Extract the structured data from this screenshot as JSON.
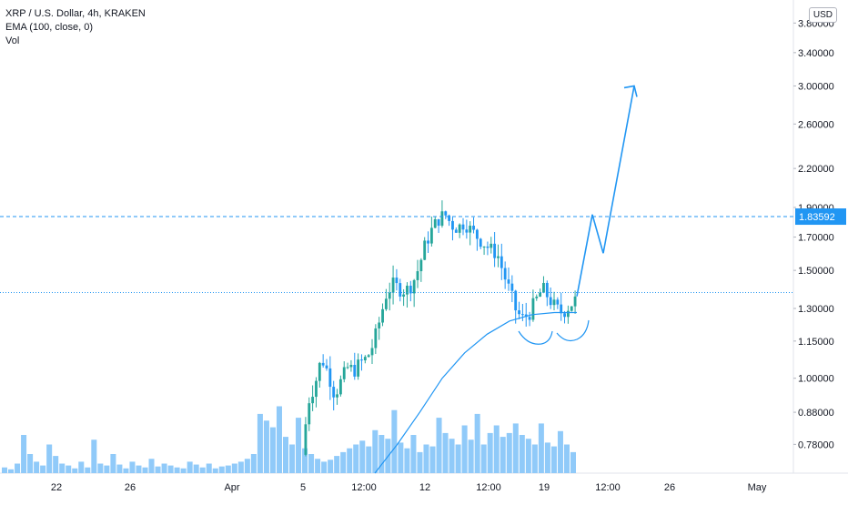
{
  "legend": {
    "symbol_line": "XRP / U.S. Dollar, 4h, KRAKEN",
    "ema_line": "EMA (100, close, 0)",
    "vol_line": "Vol"
  },
  "currency_badge": "USD",
  "colors": {
    "up": "#26a69a",
    "candle_blue": "#2196f3",
    "volume": "#90caf9",
    "ema": "#2196f3",
    "drawing": "#2196f3",
    "axis_text": "#131722",
    "badge_bg": "#2196f3"
  },
  "chart_data": {
    "type": "candlestick",
    "title": "XRP / U.S. Dollar, 4h, KRAKEN",
    "x_axis_labels": [
      "22",
      "26",
      "Apr",
      "5",
      "12:00",
      "12",
      "12:00",
      "19",
      "12:00",
      "26",
      "May"
    ],
    "y_axis_labels": [
      "3.80000",
      "3.40000",
      "3.00000",
      "2.60000",
      "2.20000",
      "1.90000",
      "1.70000",
      "1.50000",
      "1.30000",
      "1.15000",
      "1.00000",
      "0.88000",
      "0.78000"
    ],
    "y_scale": "log",
    "y_range": [
      0.7,
      3.95
    ],
    "current_price_label": "1.83592",
    "resistance_level": 1.83592,
    "support_level": 1.38,
    "price_path": [
      0.75,
      0.92,
      0.98,
      1.08,
      1.02,
      0.94,
      0.99,
      1.04,
      1.03,
      1.06,
      1.08,
      1.14,
      1.25,
      1.38,
      1.42,
      1.4,
      1.39,
      1.43,
      1.52,
      1.66,
      1.75,
      1.82,
      1.85,
      1.78,
      1.76,
      1.8,
      1.74,
      1.7,
      1.66,
      1.62,
      1.6,
      1.48,
      1.38,
      1.28,
      1.25,
      1.28,
      1.34,
      1.4,
      1.35,
      1.3,
      1.28,
      1.31,
      1.34
    ],
    "ema": {
      "name": "EMA (100, close, 0)",
      "values": [
        0.7,
        0.78,
        0.88,
        1.0,
        1.1,
        1.18,
        1.24,
        1.27,
        1.28,
        1.28
      ]
    },
    "projection": {
      "points": [
        1.36,
        1.85,
        1.6,
        3.0
      ]
    },
    "volume": {
      "relative_values": [
        0.06,
        0.04,
        0.1,
        0.4,
        0.2,
        0.12,
        0.08,
        0.3,
        0.18,
        0.1,
        0.08,
        0.05,
        0.12,
        0.06,
        0.35,
        0.1,
        0.08,
        0.2,
        0.09,
        0.05,
        0.12,
        0.08,
        0.06,
        0.15,
        0.07,
        0.1,
        0.08,
        0.06,
        0.05,
        0.12,
        0.09,
        0.06,
        0.1,
        0.05,
        0.07,
        0.08,
        0.1,
        0.12,
        0.15,
        0.2,
        0.62,
        0.55,
        0.48,
        0.7,
        0.38,
        0.3,
        0.58,
        0.26,
        0.2,
        0.15,
        0.12,
        0.14,
        0.18,
        0.22,
        0.26,
        0.3,
        0.34,
        0.28,
        0.45,
        0.4,
        0.36,
        0.66,
        0.32,
        0.26,
        0.4,
        0.22,
        0.3,
        0.28,
        0.58,
        0.42,
        0.36,
        0.3,
        0.5,
        0.35,
        0.62,
        0.3,
        0.42,
        0.5,
        0.38,
        0.42,
        0.52,
        0.4,
        0.36,
        0.3,
        0.52,
        0.32,
        0.28,
        0.44,
        0.3,
        0.22
      ]
    }
  }
}
